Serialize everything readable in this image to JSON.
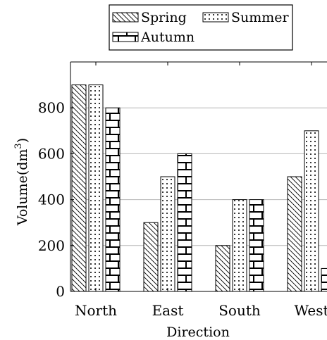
{
  "chart_data": {
    "type": "bar",
    "title": "",
    "xlabel": "Direction",
    "ylabel": "Volume(dm³)",
    "ylabel_base": "Volume(dm",
    "ylabel_exp": "3",
    "ylabel_close": ")",
    "categories": [
      "North",
      "East",
      "South",
      "West"
    ],
    "series": [
      {
        "name": "Spring",
        "values": [
          900,
          300,
          200,
          500
        ],
        "pattern": "diagonal-lines"
      },
      {
        "name": "Summer",
        "values": [
          900,
          500,
          400,
          700
        ],
        "pattern": "dots"
      },
      {
        "name": "Autumn",
        "values": [
          800,
          600,
          400,
          100
        ],
        "pattern": "bricks"
      }
    ],
    "ylim": [
      0,
      1000
    ],
    "yticks": [
      0,
      200,
      400,
      600,
      800
    ],
    "grid": "horizontal",
    "legend": "top-center"
  }
}
